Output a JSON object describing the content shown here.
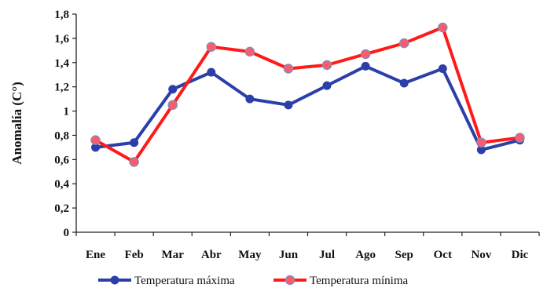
{
  "chart_data": {
    "type": "line",
    "title": "",
    "xlabel": "",
    "ylabel": "Anomalía (C°)",
    "categories": [
      "Ene",
      "Feb",
      "Mar",
      "Abr",
      "May",
      "Jun",
      "Jul",
      "Ago",
      "Sep",
      "Oct",
      "Nov",
      "Dic"
    ],
    "ylim": [
      0,
      1.8
    ],
    "yticks": [
      "0",
      "0,2",
      "0,4",
      "0,6",
      "0,8",
      "1",
      "1,2",
      "1,4",
      "1,6",
      "1,8"
    ],
    "grid": false,
    "legend_position": "bottom",
    "series": [
      {
        "name": "Temperatura máxima",
        "color": "#2b3fa8",
        "values": [
          0.7,
          0.74,
          1.18,
          1.32,
          1.1,
          1.05,
          1.21,
          1.37,
          1.23,
          1.35,
          0.68,
          0.76
        ]
      },
      {
        "name": "Temperatura mínima",
        "color": "#ff1a1a",
        "values": [
          0.76,
          0.58,
          1.05,
          1.53,
          1.49,
          1.35,
          1.38,
          1.47,
          1.56,
          1.69,
          0.74,
          0.78
        ]
      }
    ]
  }
}
